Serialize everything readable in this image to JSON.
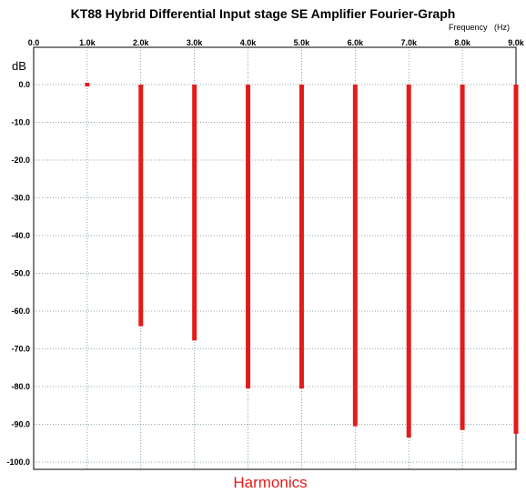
{
  "chart_data": {
    "type": "bar",
    "title": "KT88 Hybrid Differential Input stage SE Amplifier Fourier-Graph",
    "xlabel": "Harmonics",
    "x_unit_label": "Frequency   (Hz)",
    "ylabel": "dB",
    "x_tick_labels": [
      "0.0",
      "1.0k",
      "2.0k",
      "3.0k",
      "4.0k",
      "5.0k",
      "6.0k",
      "7.0k",
      "8.0k",
      "9.0k"
    ],
    "y_tick_labels": [
      "0.0",
      "-10.0",
      "-20.0",
      "-30.0",
      "-40.0",
      "-50.0",
      "-60.0",
      "-70.0",
      "-80.0",
      "-90.0",
      "-100.0"
    ],
    "xlim": [
      0,
      9000
    ],
    "ylim": [
      -102,
      0
    ],
    "grid": true,
    "bar_color": "#e41b1b",
    "x": [
      1000,
      2000,
      3000,
      4000,
      5000,
      6000,
      7000,
      8000,
      9000
    ],
    "values": [
      0,
      -64,
      -67.8,
      -80.5,
      -80.5,
      -90.5,
      -93.5,
      -91.5,
      -92.5
    ]
  }
}
